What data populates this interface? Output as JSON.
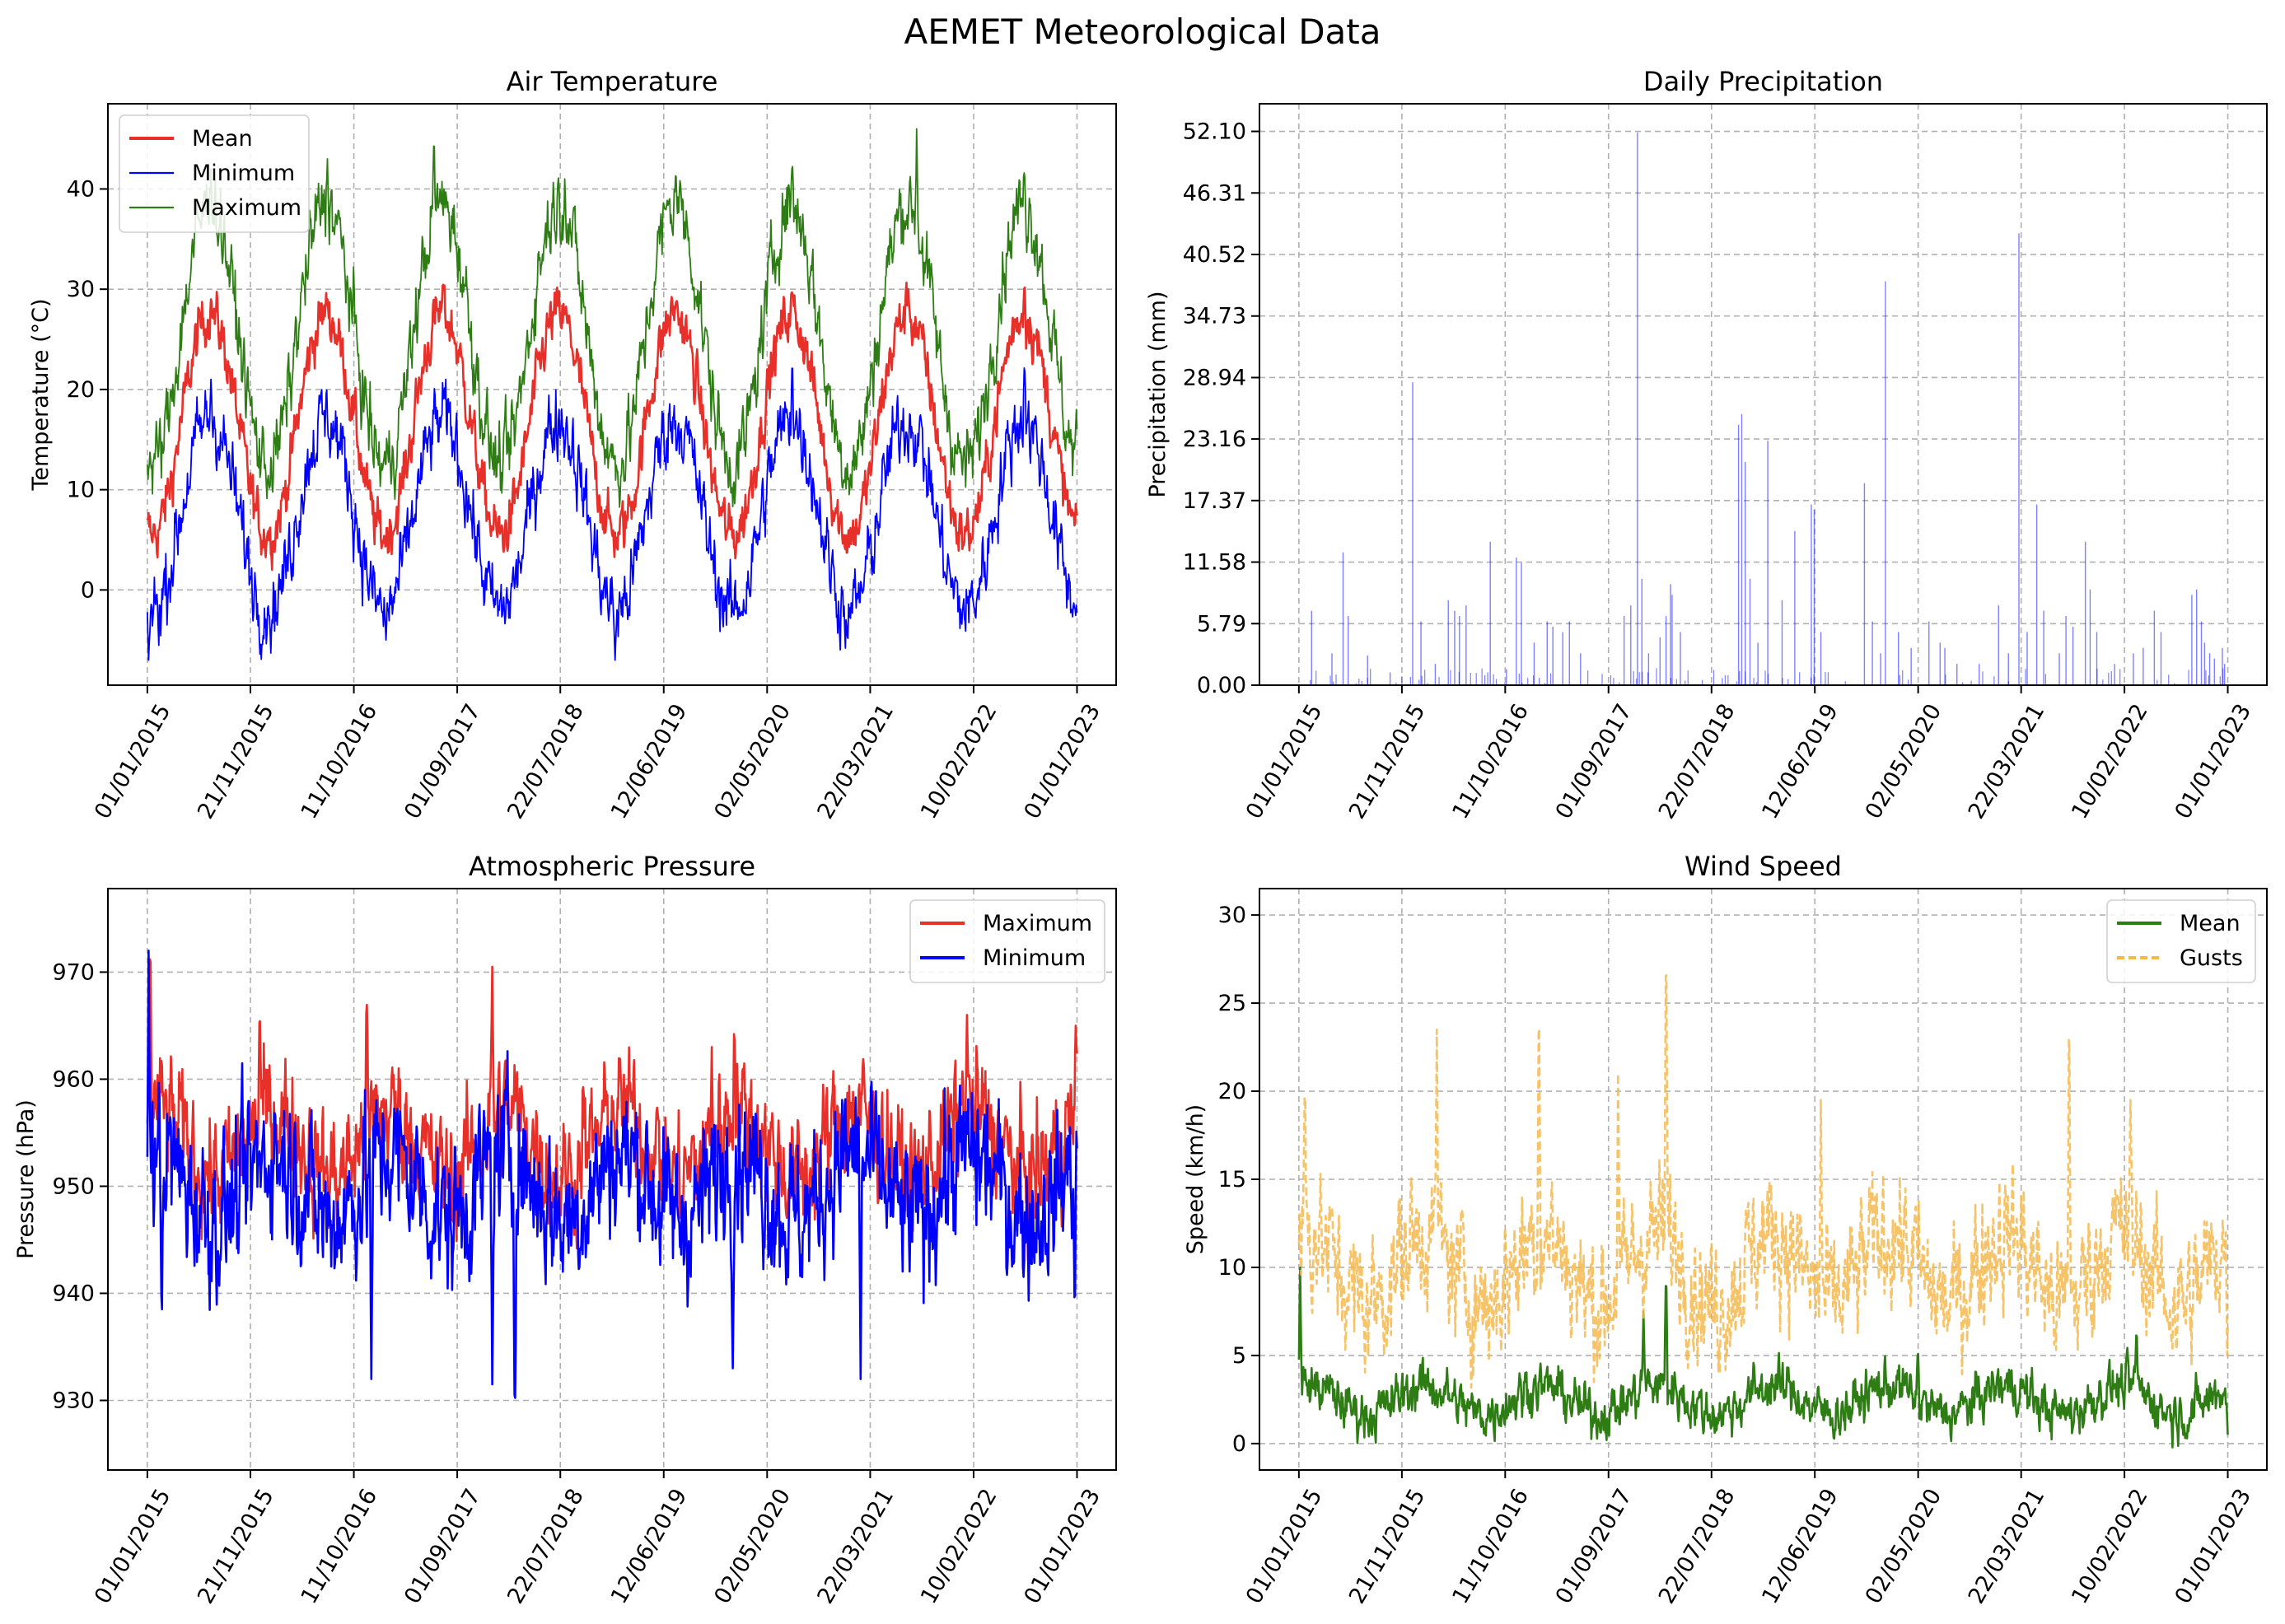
{
  "figure": {
    "title": "AEMET Meteorological Data"
  },
  "chart_data": [
    {
      "id": "temp",
      "type": "line",
      "title": "Air Temperature",
      "xlabel": "",
      "ylabel": "Temperature (°C)",
      "x_ticks": [
        "01/01/2015",
        "21/11/2015",
        "11/10/2016",
        "01/09/2017",
        "22/07/2018",
        "12/06/2019",
        "02/05/2020",
        "22/03/2021",
        "10/02/2022",
        "01/01/2023"
      ],
      "xlim": [
        "2014-08-30",
        "2023-05-04"
      ],
      "y_ticks": [
        "0",
        "10",
        "20",
        "30",
        "40"
      ],
      "ylim": [
        -9.5,
        48.5
      ],
      "grid": true,
      "legend": "top-left",
      "series": [
        {
          "name": "Mean",
          "color": "#e8302a",
          "stroke": "solid",
          "thick": true,
          "model": {
            "base": 16.5,
            "amp": 11,
            "noise": 2.2,
            "phase": 200
          },
          "seasonal_samples": [
            {
              "x": "2015-01-15",
              "y": 5
            },
            {
              "x": "2015-07-20",
              "y": 29
            },
            {
              "x": "2016-01-15",
              "y": 6
            },
            {
              "x": "2016-07-20",
              "y": 29
            },
            {
              "x": "2017-07-20",
              "y": 31
            },
            {
              "x": "2019-07-20",
              "y": 29
            },
            {
              "x": "2020-07-20",
              "y": 30
            },
            {
              "x": "2021-07-20",
              "y": 30
            },
            {
              "x": "2022-07-20",
              "y": 31
            },
            {
              "x": "2022-12-30",
              "y": 8
            }
          ]
        },
        {
          "name": "Minimum",
          "color": "#0000ff",
          "stroke": "solid",
          "thick": false,
          "model": {
            "base": 7.5,
            "amp": 9.5,
            "noise": 3,
            "phase": 205
          },
          "seasonal_samples": [
            {
              "x": "2015-01-05",
              "y": -7
            },
            {
              "x": "2015-07-20",
              "y": 21
            },
            {
              "x": "2016-01-15",
              "y": -2
            },
            {
              "x": "2017-01-20",
              "y": -5
            },
            {
              "x": "2019-01-10",
              "y": -7
            },
            {
              "x": "2020-07-20",
              "y": 24
            },
            {
              "x": "2021-01-10",
              "y": -6
            },
            {
              "x": "2022-07-20",
              "y": 24
            },
            {
              "x": "2022-12-30",
              "y": -1.5
            }
          ]
        },
        {
          "name": "Maximum",
          "color": "#2e7d14",
          "stroke": "solid",
          "thick": false,
          "model": {
            "base": 25.5,
            "amp": 13,
            "noise": 3,
            "phase": 200
          },
          "seasonal_samples": [
            {
              "x": "2015-01-05",
              "y": 12
            },
            {
              "x": "2015-07-20",
              "y": 42
            },
            {
              "x": "2016-07-20",
              "y": 43
            },
            {
              "x": "2017-06-20",
              "y": 45.5
            },
            {
              "x": "2018-08-05",
              "y": 41
            },
            {
              "x": "2019-07-20",
              "y": 42.5
            },
            {
              "x": "2020-07-20",
              "y": 43
            },
            {
              "x": "2021-08-15",
              "y": 46
            },
            {
              "x": "2022-07-20",
              "y": 42
            },
            {
              "x": "2022-12-30",
              "y": 18
            }
          ]
        }
      ]
    },
    {
      "id": "precip",
      "type": "bar",
      "title": "Daily Precipitation",
      "xlabel": "",
      "ylabel": "Precipitation (mm)",
      "x_ticks": [
        "01/01/2015",
        "21/11/2015",
        "11/10/2016",
        "01/09/2017",
        "22/07/2018",
        "12/06/2019",
        "02/05/2020",
        "22/03/2021",
        "10/02/2022",
        "01/01/2023"
      ],
      "xlim": [
        "2014-08-30",
        "2023-05-04"
      ],
      "y_ticks": [
        "0.00",
        "5.79",
        "11.58",
        "17.37",
        "23.16",
        "28.94",
        "34.73",
        "40.52",
        "46.31",
        "52.10"
      ],
      "ylim": [
        0,
        54.7
      ],
      "grid": true,
      "series": [
        {
          "color": "#0000ff",
          "opacity": 0.5,
          "values": [
            {
              "x": "2015-02-10",
              "y": 7
            },
            {
              "x": "2015-04-15",
              "y": 3
            },
            {
              "x": "2015-05-20",
              "y": 12.5
            },
            {
              "x": "2015-06-05",
              "y": 6.5
            },
            {
              "x": "2015-08-05",
              "y": 2.8
            },
            {
              "x": "2015-10-15",
              "y": 1.2
            },
            {
              "x": "2015-12-25",
              "y": 28.5
            },
            {
              "x": "2016-01-20",
              "y": 6
            },
            {
              "x": "2016-03-05",
              "y": 2
            },
            {
              "x": "2016-04-15",
              "y": 8
            },
            {
              "x": "2016-05-05",
              "y": 7
            },
            {
              "x": "2016-05-20",
              "y": 6.5
            },
            {
              "x": "2016-06-10",
              "y": 7.5
            },
            {
              "x": "2016-08-25",
              "y": 13.5
            },
            {
              "x": "2016-10-15",
              "y": 1.5
            },
            {
              "x": "2016-11-15",
              "y": 12
            },
            {
              "x": "2016-12-01",
              "y": 11.5
            },
            {
              "x": "2017-01-10",
              "y": 4
            },
            {
              "x": "2017-02-20",
              "y": 6
            },
            {
              "x": "2017-03-10",
              "y": 5.5
            },
            {
              "x": "2017-04-10",
              "y": 5
            },
            {
              "x": "2017-05-01",
              "y": 6
            },
            {
              "x": "2017-06-05",
              "y": 3
            },
            {
              "x": "2017-10-20",
              "y": 6.5
            },
            {
              "x": "2017-11-10",
              "y": 7.5
            },
            {
              "x": "2017-12-01",
              "y": 52
            },
            {
              "x": "2017-12-15",
              "y": 10
            },
            {
              "x": "2018-01-05",
              "y": 3
            },
            {
              "x": "2018-02-10",
              "y": 4.5
            },
            {
              "x": "2018-03-01",
              "y": 6.5
            },
            {
              "x": "2018-03-15",
              "y": 9.5
            },
            {
              "x": "2018-03-20",
              "y": 8.5
            },
            {
              "x": "2018-04-15",
              "y": 5
            },
            {
              "x": "2018-10-15",
              "y": 24.5
            },
            {
              "x": "2018-10-25",
              "y": 25.5
            },
            {
              "x": "2018-11-05",
              "y": 21
            },
            {
              "x": "2018-11-20",
              "y": 10
            },
            {
              "x": "2018-12-15",
              "y": 4
            },
            {
              "x": "2019-01-15",
              "y": 23
            },
            {
              "x": "2019-03-01",
              "y": 8
            },
            {
              "x": "2019-04-10",
              "y": 14.5
            },
            {
              "x": "2019-06-01",
              "y": 17
            },
            {
              "x": "2019-06-10",
              "y": 16.5
            },
            {
              "x": "2019-07-01",
              "y": 5
            },
            {
              "x": "2019-11-15",
              "y": 19
            },
            {
              "x": "2019-12-10",
              "y": 6
            },
            {
              "x": "2020-01-05",
              "y": 3
            },
            {
              "x": "2020-01-20",
              "y": 38
            },
            {
              "x": "2020-03-01",
              "y": 5
            },
            {
              "x": "2020-04-10",
              "y": 3.5
            },
            {
              "x": "2020-06-05",
              "y": 6
            },
            {
              "x": "2020-07-10",
              "y": 4
            },
            {
              "x": "2020-07-25",
              "y": 3.5
            },
            {
              "x": "2020-09-01",
              "y": 2
            },
            {
              "x": "2020-11-10",
              "y": 2
            },
            {
              "x": "2021-01-10",
              "y": 7.5
            },
            {
              "x": "2021-02-10",
              "y": 3
            },
            {
              "x": "2021-03-15",
              "y": 42.5
            },
            {
              "x": "2021-04-10",
              "y": 5
            },
            {
              "x": "2021-05-10",
              "y": 17
            },
            {
              "x": "2021-06-01",
              "y": 7
            },
            {
              "x": "2021-07-20",
              "y": 3
            },
            {
              "x": "2021-08-10",
              "y": 6.5
            },
            {
              "x": "2021-09-01",
              "y": 5.5
            },
            {
              "x": "2021-10-10",
              "y": 13.5
            },
            {
              "x": "2021-10-25",
              "y": 9
            },
            {
              "x": "2021-11-15",
              "y": 5
            },
            {
              "x": "2022-01-10",
              "y": 2
            },
            {
              "x": "2022-03-10",
              "y": 3
            },
            {
              "x": "2022-04-10",
              "y": 3.5
            },
            {
              "x": "2022-05-15",
              "y": 7
            },
            {
              "x": "2022-06-05",
              "y": 5
            },
            {
              "x": "2022-09-10",
              "y": 8.5
            },
            {
              "x": "2022-09-25",
              "y": 9
            },
            {
              "x": "2022-10-10",
              "y": 6
            },
            {
              "x": "2022-10-20",
              "y": 4
            },
            {
              "x": "2022-11-05",
              "y": 3
            },
            {
              "x": "2022-11-20",
              "y": 2.5
            },
            {
              "x": "2022-12-15",
              "y": 3.5
            },
            {
              "x": "2022-12-22",
              "y": 2
            }
          ]
        }
      ]
    },
    {
      "id": "pressure",
      "type": "line",
      "title": "Atmospheric Pressure",
      "xlabel": "",
      "ylabel": "Pressure (hPa)",
      "x_ticks": [
        "01/01/2015",
        "21/11/2015",
        "11/10/2016",
        "01/09/2017",
        "22/07/2018",
        "12/06/2019",
        "02/05/2020",
        "22/03/2021",
        "10/02/2022",
        "01/01/2023"
      ],
      "xlim": [
        "2014-08-30",
        "2023-05-04"
      ],
      "y_ticks": [
        "930",
        "940",
        "950",
        "960",
        "970"
      ],
      "ylim": [
        923.5,
        977.8
      ],
      "grid": true,
      "legend": "top-right",
      "series": [
        {
          "name": "Maximum",
          "color": "#e8302a",
          "stroke": "solid",
          "thick": true,
          "model": {
            "base": 954,
            "amp": 3,
            "noise": 4.5
          },
          "seasonal_samples": [
            {
              "x": "2015-01-10",
              "y": 975
            },
            {
              "x": "2015-12-20",
              "y": 968
            },
            {
              "x": "2016-11-20",
              "y": 970
            },
            {
              "x": "2017-12-20",
              "y": 970.5
            },
            {
              "x": "2018-10-01",
              "y": 961
            },
            {
              "x": "2019-11-10",
              "y": 963
            },
            {
              "x": "2020-01-20",
              "y": 967
            },
            {
              "x": "2022-01-20",
              "y": 966
            },
            {
              "x": "2022-12-28",
              "y": 965
            }
          ]
        },
        {
          "name": "Minimum",
          "color": "#0000ff",
          "stroke": "solid",
          "thick": true,
          "model": {
            "base": 950,
            "amp": 3,
            "noise": 5.5
          },
          "seasonal_samples": [
            {
              "x": "2015-01-05",
              "y": 972
            },
            {
              "x": "2015-02-15",
              "y": 936
            },
            {
              "x": "2016-12-05",
              "y": 932
            },
            {
              "x": "2017-12-20",
              "y": 931.5
            },
            {
              "x": "2018-03-01",
              "y": 926
            },
            {
              "x": "2020-01-15",
              "y": 933
            },
            {
              "x": "2021-02-20",
              "y": 932
            },
            {
              "x": "2022-12-25",
              "y": 937
            }
          ]
        }
      ]
    },
    {
      "id": "wind",
      "type": "line",
      "title": "Wind Speed",
      "xlabel": "",
      "ylabel": "Speed (km/h)",
      "x_ticks": [
        "01/01/2015",
        "21/11/2015",
        "11/10/2016",
        "01/09/2017",
        "22/07/2018",
        "12/06/2019",
        "02/05/2020",
        "22/03/2021",
        "10/02/2022",
        "01/01/2023"
      ],
      "xlim": [
        "2014-08-30",
        "2023-05-04"
      ],
      "y_ticks": [
        "0",
        "5",
        "10",
        "15",
        "20",
        "25",
        "30"
      ],
      "ylim": [
        -1.5,
        31.5
      ],
      "grid": true,
      "legend": "top-right",
      "series": [
        {
          "name": "Mean",
          "color": "#2e7d14",
          "stroke": "solid",
          "thick": true,
          "model": {
            "base": 2.5,
            "amp": 0.8,
            "noise": 1.1
          },
          "seasonal_samples": [
            {
              "x": "2015-01-05",
              "y": 10
            },
            {
              "x": "2017-12-20",
              "y": 7.5
            },
            {
              "x": "2018-03-01",
              "y": 10.5
            },
            {
              "x": "2020-05-01",
              "y": 5.5
            },
            {
              "x": "2022-03-20",
              "y": 7
            },
            {
              "x": "2023-01-01",
              "y": 0.5
            }
          ]
        },
        {
          "name": "Gusts",
          "color": "#f5b84e",
          "stroke": "dashed",
          "thick": true,
          "model": {
            "base": 10,
            "amp": 2,
            "noise": 3
          },
          "seasonal_samples": [
            {
              "x": "2015-01-20",
              "y": 21.5
            },
            {
              "x": "2016-03-10",
              "y": 23.5
            },
            {
              "x": "2017-01-25",
              "y": 26.5
            },
            {
              "x": "2017-10-01",
              "y": 21
            },
            {
              "x": "2018-03-01",
              "y": 30
            },
            {
              "x": "2019-07-01",
              "y": 19.5
            },
            {
              "x": "2021-08-20",
              "y": 26.5
            },
            {
              "x": "2022-03-01",
              "y": 19.5
            },
            {
              "x": "2022-12-30",
              "y": 5
            }
          ]
        }
      ]
    }
  ]
}
